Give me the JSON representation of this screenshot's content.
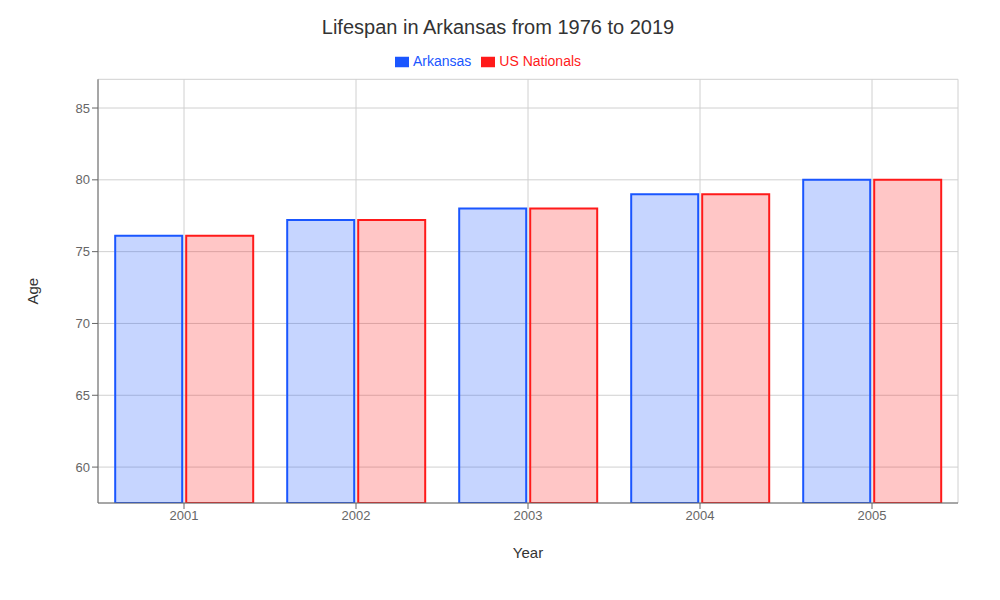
{
  "chart_data": {
    "type": "bar",
    "title": "Lifespan in Arkansas from 1976 to 2019",
    "x_label": "Year",
    "y_label": "Age",
    "categories": [
      "2001",
      "2002",
      "2003",
      "2004",
      "2005"
    ],
    "series": [
      {
        "name": "Arkansas",
        "color": "#1a56ff",
        "values": [
          76.1,
          77.2,
          78.0,
          79.0,
          80.0
        ]
      },
      {
        "name": "US Nationals",
        "color": "#ff1a1a",
        "values": [
          76.1,
          77.2,
          78.0,
          79.0,
          80.0
        ]
      }
    ],
    "ylim": [
      57.5,
      87
    ],
    "yticks": [
      60,
      65,
      70,
      75,
      80,
      85
    ],
    "grid": true,
    "legend": "upper center"
  }
}
